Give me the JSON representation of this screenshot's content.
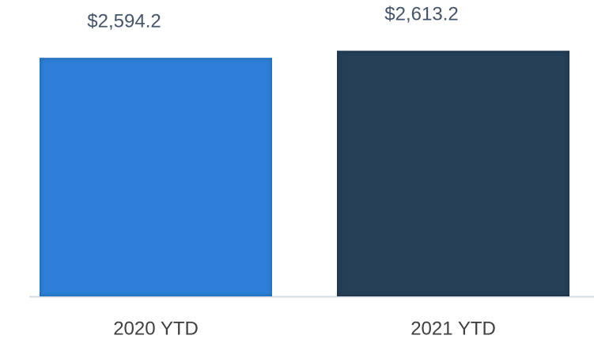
{
  "chart_data": {
    "type": "bar",
    "categories": [
      "2020 YTD",
      "2021 YTD"
    ],
    "values": [
      2594.2,
      2613.2
    ],
    "value_labels": [
      "$2,594.2",
      "$2,613.2"
    ],
    "colors": [
      "#2e7fd6",
      "#253f58"
    ],
    "ylim": [
      1950,
      2650
    ]
  }
}
